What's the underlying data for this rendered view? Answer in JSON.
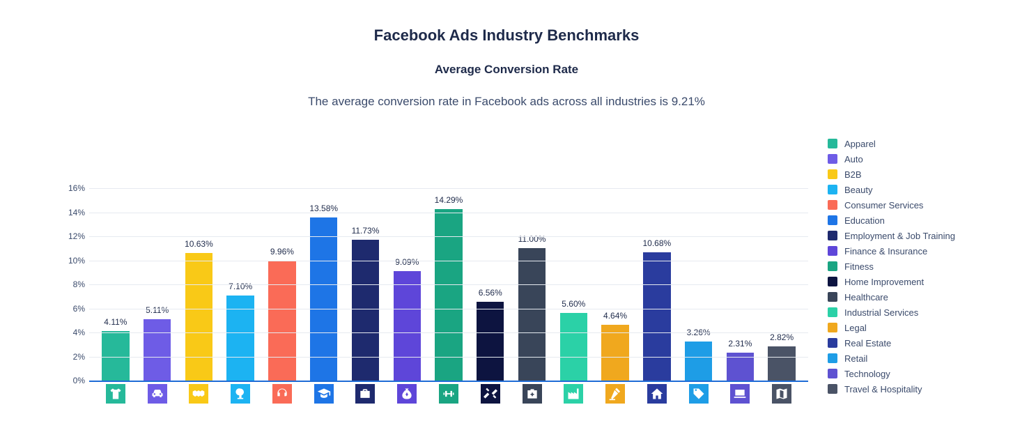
{
  "title": "Facebook Ads Industry Benchmarks",
  "subtitle": "Average Conversion Rate",
  "description": "The average conversion rate in Facebook ads across all industries is 9.21%",
  "chart": {
    "type": "bar",
    "ylim": [
      0,
      16
    ],
    "ytick_step": 2,
    "ytick_suffix": "%",
    "grid_color": "#e6eaf0",
    "baseline_color": "#1e6cd6",
    "background_color": "#ffffff",
    "tick_font_size": 12,
    "bar_label_font_size": 12,
    "legend_font_size": 13,
    "title_font_size": 22,
    "subtitle_font_size": 17,
    "desc_font_size": 17,
    "bar_width_ratio": 0.66,
    "series": [
      {
        "name": "Apparel",
        "value": 4.11,
        "label": "4.11%",
        "color": "#26b99a",
        "icon": "shirt"
      },
      {
        "name": "Auto",
        "value": 5.11,
        "label": "5.11%",
        "color": "#6e5ce6",
        "icon": "car"
      },
      {
        "name": "B2B",
        "value": 10.63,
        "label": "10.63%",
        "color": "#f9c917",
        "icon": "handshake"
      },
      {
        "name": "Beauty",
        "value": 7.1,
        "label": "7.10%",
        "color": "#1cb3f2",
        "icon": "mirror"
      },
      {
        "name": "Consumer Services",
        "value": 9.96,
        "label": "9.96%",
        "color": "#fa6b57",
        "icon": "headset"
      },
      {
        "name": "Education",
        "value": 13.58,
        "label": "13.58%",
        "color": "#1e75e6",
        "icon": "gradcap"
      },
      {
        "name": "Employment & Job Training",
        "value": 11.73,
        "label": "11.73%",
        "color": "#1e2a6e",
        "icon": "briefcase"
      },
      {
        "name": "Finance & Insurance",
        "value": 9.09,
        "label": "9.09%",
        "color": "#5e46d9",
        "icon": "moneybag"
      },
      {
        "name": "Fitness",
        "value": 14.29,
        "label": "14.29%",
        "color": "#1aa582",
        "icon": "fitness"
      },
      {
        "name": "Home Improvement",
        "value": 6.56,
        "label": "6.56%",
        "color": "#0d1440",
        "icon": "tools"
      },
      {
        "name": "Healthcare",
        "value": 11.0,
        "label": "11.00%",
        "color": "#394559",
        "icon": "medkit"
      },
      {
        "name": "Industrial Services",
        "value": 5.6,
        "label": "5.60%",
        "color": "#2bd1a7",
        "icon": "factory"
      },
      {
        "name": "Legal",
        "value": 4.64,
        "label": "4.64%",
        "color": "#f0a81e",
        "icon": "gavel"
      },
      {
        "name": "Real Estate",
        "value": 10.68,
        "label": "10.68%",
        "color": "#2a3c9e",
        "icon": "house"
      },
      {
        "name": "Retail",
        "value": 3.26,
        "label": "3.26%",
        "color": "#1e9de6",
        "icon": "tag"
      },
      {
        "name": "Technology",
        "value": 2.31,
        "label": "2.31%",
        "color": "#5e52d1",
        "icon": "laptop"
      },
      {
        "name": "Travel & Hospitality",
        "value": 2.82,
        "label": "2.82%",
        "color": "#4a5366",
        "icon": "map"
      }
    ]
  }
}
